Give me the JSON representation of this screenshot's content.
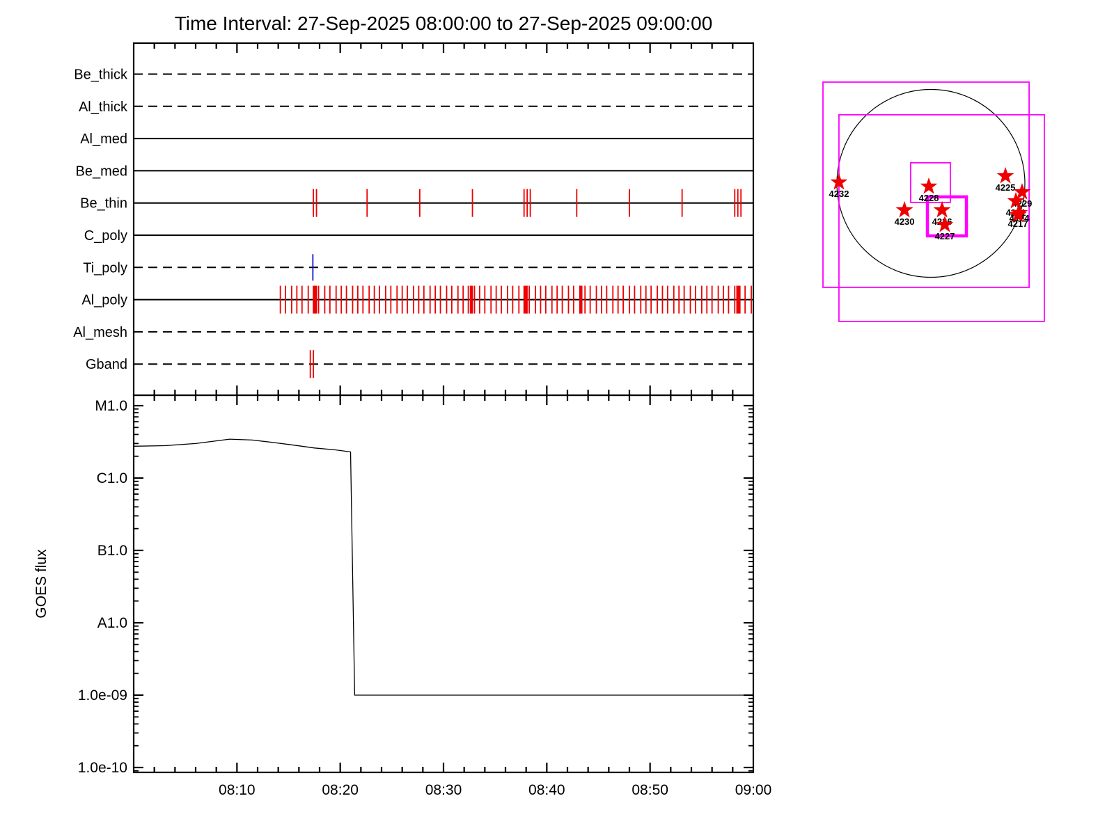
{
  "title": "Time Interval: 27-Sep-2025 08:00:00 to 27-Sep-2025 09:00:00",
  "colors": {
    "background": "#ffffff",
    "frame": "#000000",
    "tick_red": "#ee0000",
    "tick_blue": "#1414cc",
    "curve": "#000000",
    "fov_magenta": "#ff00ff",
    "star_red": "#ee0000",
    "limb": "#000000"
  },
  "chart_data": [
    {
      "id": "xrt-filter-timeline",
      "type": "timeline",
      "title": "Time Interval: 27-Sep-2025 08:00:00 to 27-Sep-2025 09:00:00",
      "x_axis": {
        "start": "08:00",
        "end": "09:00",
        "minor_tick_minutes": 2,
        "major_tick_minutes": 10
      },
      "rows": [
        {
          "label": "Be_thick",
          "style": "dashed",
          "ticks_min": [],
          "thick_ticks_min": [],
          "tick_color": "red"
        },
        {
          "label": "Al_thick",
          "style": "dashed",
          "ticks_min": [],
          "thick_ticks_min": [],
          "tick_color": "red"
        },
        {
          "label": "Al_med",
          "style": "solid",
          "ticks_min": [],
          "thick_ticks_min": [],
          "tick_color": "red"
        },
        {
          "label": "Be_med",
          "style": "solid",
          "ticks_min": [],
          "thick_ticks_min": [],
          "tick_color": "red"
        },
        {
          "label": "Be_thin",
          "style": "solid",
          "ticks_min": [
            17.4,
            17.7,
            22.6,
            27.7,
            32.8,
            37.8,
            38.1,
            38.4,
            42.9,
            48.0,
            53.1,
            58.2,
            58.5,
            58.8
          ],
          "thick_ticks_min": [],
          "tick_color": "red"
        },
        {
          "label": "C_poly",
          "style": "solid",
          "ticks_min": [],
          "thick_ticks_min": [],
          "tick_color": "red"
        },
        {
          "label": "Ti_poly",
          "style": "dashed",
          "ticks_min": [
            17.35
          ],
          "thick_ticks_min": [],
          "tick_color": "blue"
        },
        {
          "label": "Al_poly",
          "style": "solid",
          "ticks_min": [
            14.2,
            14.7,
            15.3,
            15.8,
            16.3,
            16.9,
            17.4,
            17.9,
            18.5,
            19.0,
            19.6,
            20.1,
            20.6,
            21.2,
            21.7,
            22.2,
            22.8,
            23.3,
            23.8,
            24.4,
            24.9,
            25.5,
            26.0,
            26.5,
            27.1,
            27.6,
            28.1,
            28.7,
            29.2,
            29.7,
            30.3,
            30.8,
            31.4,
            31.9,
            32.4,
            33.0,
            33.5,
            34.0,
            34.6,
            35.1,
            35.6,
            36.2,
            36.7,
            37.3,
            37.8,
            38.3,
            38.9,
            39.4,
            39.9,
            40.5,
            41.0,
            41.5,
            42.1,
            42.6,
            43.2,
            43.7,
            44.2,
            44.8,
            45.3,
            45.8,
            46.4,
            46.9,
            47.4,
            48.0,
            48.5,
            49.1,
            49.6,
            50.1,
            50.7,
            51.2,
            51.7,
            52.3,
            52.8,
            53.3,
            53.9,
            54.4,
            55.0,
            55.5,
            56.0,
            56.6,
            57.1,
            57.6,
            58.2,
            58.7,
            59.2,
            59.8
          ],
          "thick_ticks_min": [
            17.6,
            32.7,
            38.0,
            43.3,
            58.5
          ],
          "tick_color": "red"
        },
        {
          "label": "Al_mesh",
          "style": "dashed",
          "ticks_min": [],
          "thick_ticks_min": [],
          "tick_color": "red"
        },
        {
          "label": "Gband",
          "style": "dashed",
          "ticks_min": [
            17.1,
            17.4
          ],
          "thick_ticks_min": [],
          "tick_color": "red"
        }
      ]
    },
    {
      "id": "goes-flux",
      "type": "line",
      "xlabel": "",
      "ylabel": "GOES flux",
      "y_scale": "log",
      "ylim": [
        9e-11,
        1.6e-05
      ],
      "y_ticks": [
        {
          "label": "M1.0",
          "flux": 1e-05
        },
        {
          "label": "C1.0",
          "flux": 1e-06
        },
        {
          "label": "B1.0",
          "flux": 1e-07
        },
        {
          "label": "A1.0",
          "flux": 1e-08
        },
        {
          "label": "1.0e-09",
          "flux": 1e-09
        },
        {
          "label": "1.0e-10",
          "flux": 1e-10
        }
      ],
      "x_tick_labels": [
        "08:10",
        "08:20",
        "08:30",
        "08:40",
        "08:50",
        "09:00"
      ],
      "x_tick_minutes": [
        10,
        20,
        30,
        40,
        50,
        60
      ],
      "series": [
        {
          "name": "GOES flux",
          "points_min_flux": [
            [
              0,
              2.75e-06
            ],
            [
              3,
              2.8e-06
            ],
            [
              6,
              3e-06
            ],
            [
              9.3,
              3.45e-06
            ],
            [
              11.5,
              3.35e-06
            ],
            [
              13.5,
              3.1e-06
            ],
            [
              15.5,
              2.85e-06
            ],
            [
              17.5,
              2.6e-06
            ],
            [
              19.5,
              2.45e-06
            ],
            [
              21.0,
              2.3e-06
            ],
            [
              21.4,
              1e-09
            ],
            [
              60,
              1e-09
            ]
          ]
        }
      ]
    },
    {
      "id": "solar-disk-map",
      "type": "scatter",
      "units": "solar radii, +x west, +y south",
      "active_regions": [
        {
          "noaa": "4232",
          "x": -0.978,
          "y": -0.011
        },
        {
          "noaa": "4228",
          "x": -0.022,
          "y": 0.033
        },
        {
          "noaa": "4230",
          "x": -0.281,
          "y": 0.285
        },
        {
          "noaa": "4226",
          "x": 0.119,
          "y": 0.285
        },
        {
          "noaa": "4227",
          "x": 0.148,
          "y": 0.441
        },
        {
          "noaa": "4225",
          "x": 0.793,
          "y": -0.078
        },
        {
          "noaa": "4229",
          "x": 0.97,
          "y": 0.093
        },
        {
          "noaa": "4231",
          "x": 0.904,
          "y": 0.189
        },
        {
          "noaa": "4224",
          "x": 0.941,
          "y": 0.315,
          "label_dy": 7
        },
        {
          "noaa": "4217",
          "x": 0.926,
          "y": 0.337,
          "label_dy": 12
        }
      ],
      "fov_boxes": [
        {
          "x": -1.148,
          "y": -1.078,
          "w": 2.193,
          "h": 2.185,
          "thick": false
        },
        {
          "x": -0.978,
          "y": -0.73,
          "w": 2.185,
          "h": 2.2,
          "thick": false
        },
        {
          "x": -0.215,
          "y": -0.219,
          "w": 0.422,
          "h": 0.422,
          "thick": false
        },
        {
          "x": -0.037,
          "y": 0.144,
          "w": 0.415,
          "h": 0.415,
          "thick": true
        }
      ]
    }
  ]
}
